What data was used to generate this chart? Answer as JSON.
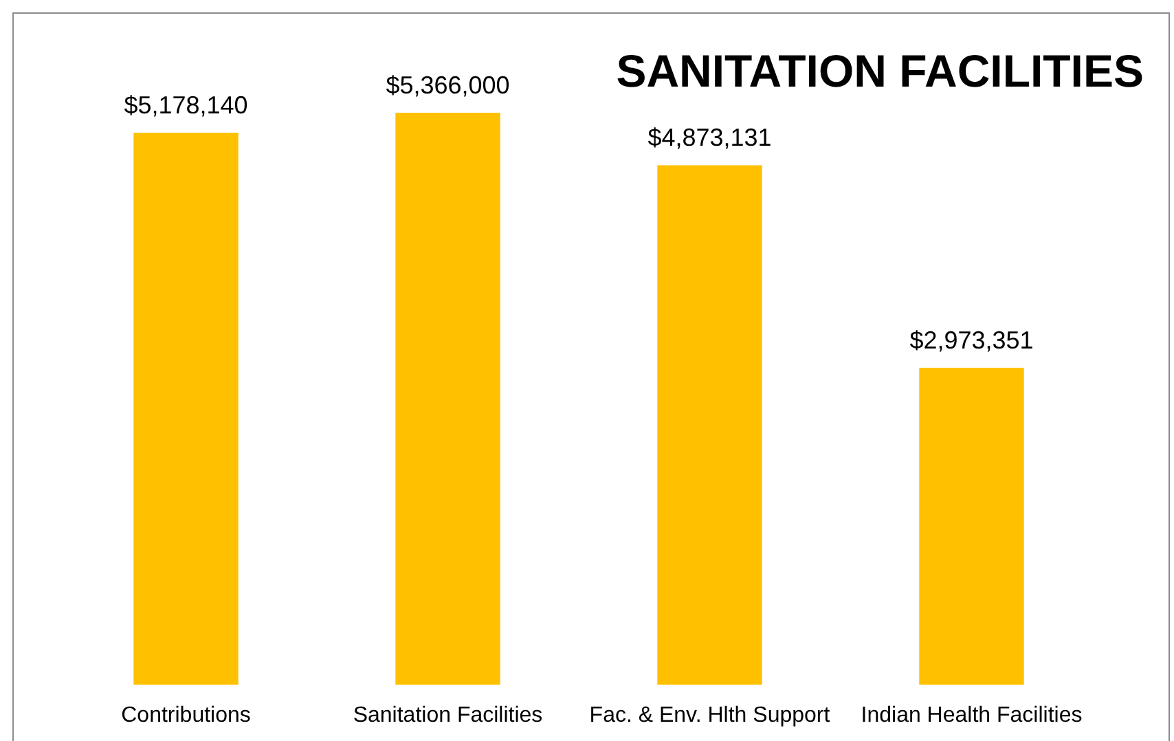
{
  "chart_data": {
    "type": "bar",
    "title": "SANITATION FACILITIES",
    "categories": [
      "Contributions",
      "Sanitation Facilities",
      "Fac. & Env. Hlth Support",
      "Indian Health Facilities"
    ],
    "values": [
      5178140,
      5366000,
      4873131,
      2973351
    ],
    "value_labels": [
      "$5,178,140",
      "$5,366,000",
      "$4,873,131",
      "$2,973,351"
    ],
    "color": "#ffc000"
  }
}
